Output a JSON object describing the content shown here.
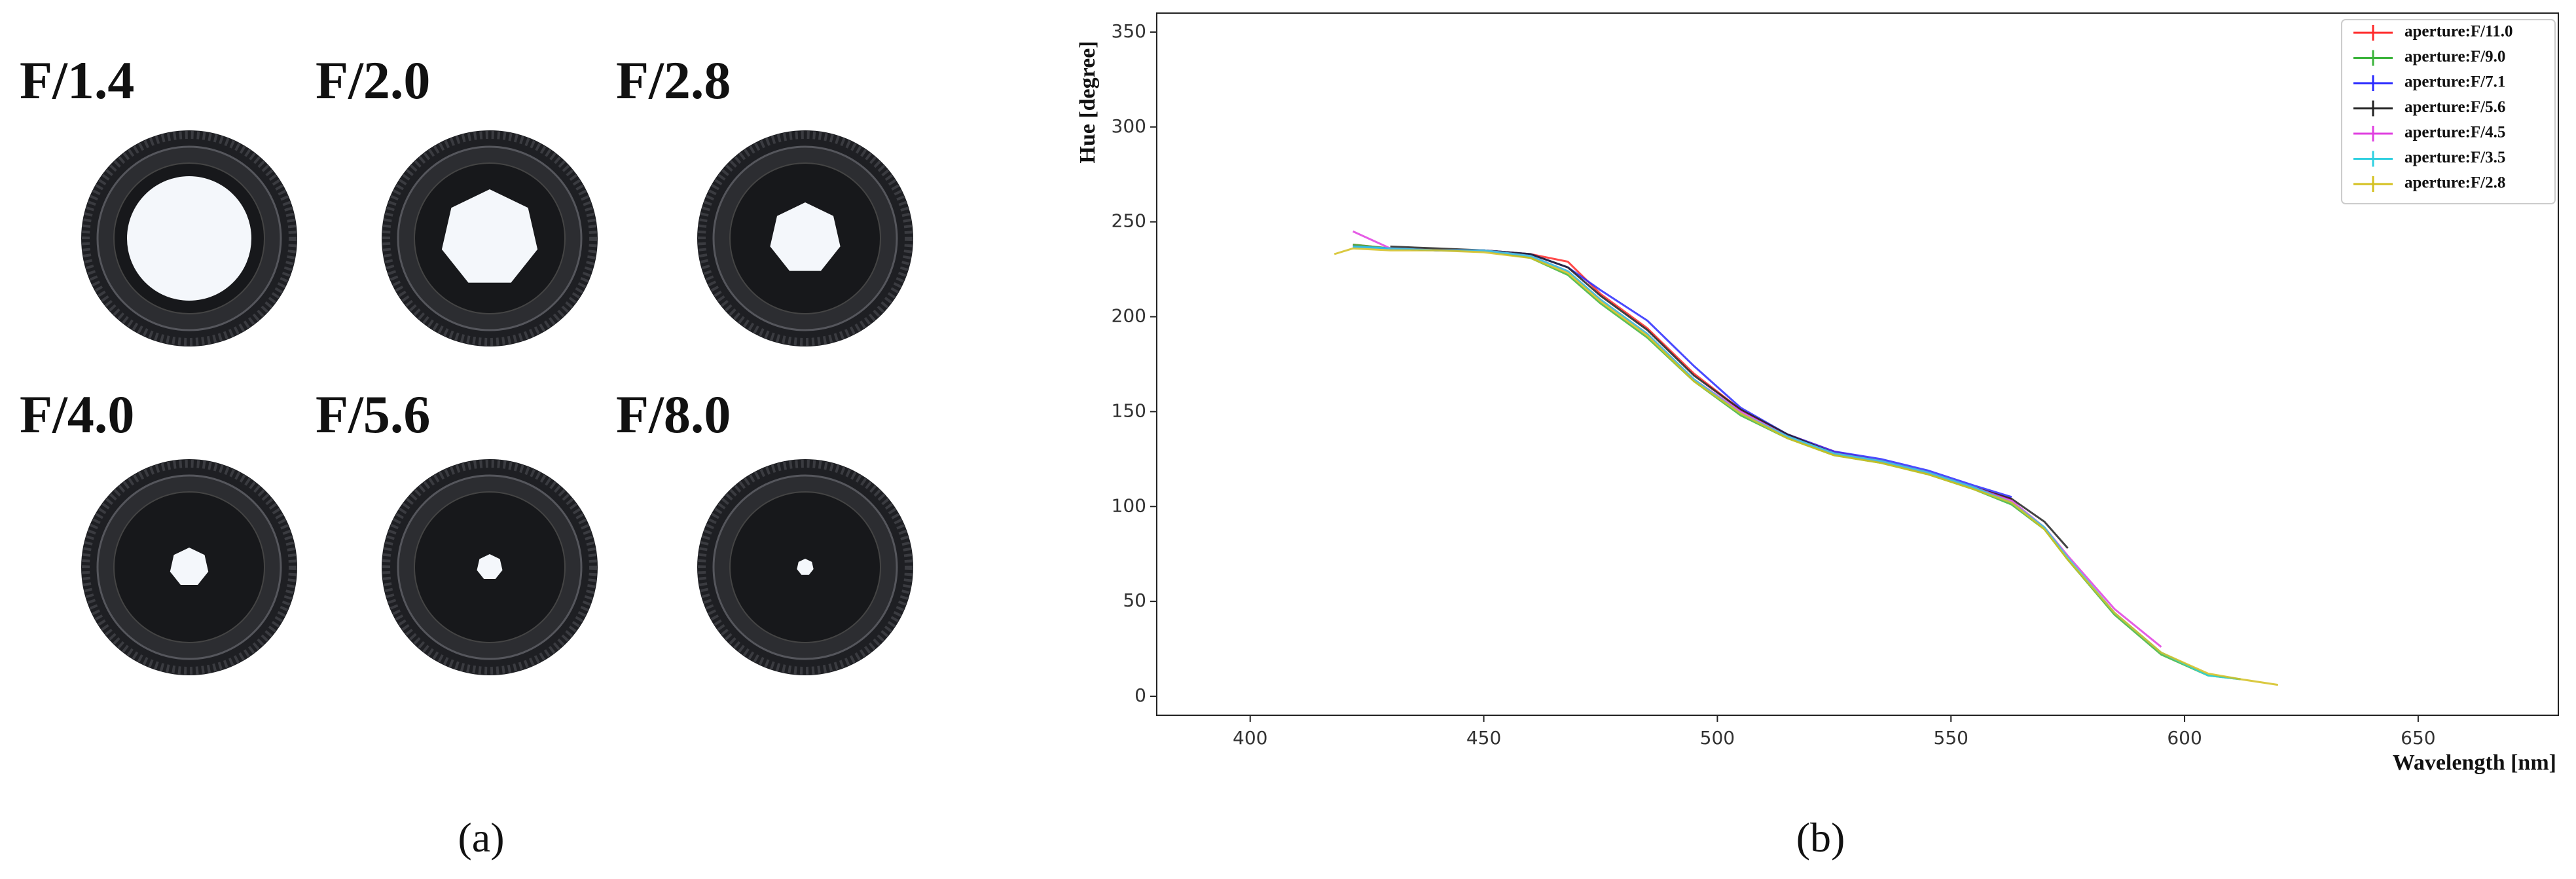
{
  "panel_a": {
    "apertures": [
      "F/1.4",
      "F/2.0",
      "F/2.8",
      "F/4.0",
      "F/5.6",
      "F/8.0"
    ],
    "caption": "(a)"
  },
  "panel_b": {
    "caption": "(b)"
  },
  "chart_data": {
    "type": "line",
    "x_label": "Wavelength [nm]",
    "y_label": "Hue [degree]",
    "x": [
      418,
      422,
      430,
      440,
      450,
      460,
      468,
      475,
      485,
      495,
      505,
      515,
      525,
      535,
      545,
      555,
      563,
      570,
      575,
      585,
      595,
      605,
      612,
      620
    ],
    "series": [
      {
        "name": "aperture:F/11.0",
        "color": "#ff2a2a",
        "values": [
          null,
          238,
          236,
          235,
          235,
          233,
          229,
          212,
          194,
          170,
          151,
          138,
          129,
          124,
          118,
          110,
          104,
          null,
          null,
          null,
          null,
          null,
          null,
          null
        ]
      },
      {
        "name": "aperture:F/9.0",
        "color": "#3cb43c",
        "values": [
          null,
          238,
          236,
          235,
          235,
          231,
          222,
          207,
          189,
          166,
          148,
          136,
          127,
          123,
          117,
          109,
          101,
          88,
          72,
          43,
          22,
          11,
          9,
          null
        ]
      },
      {
        "name": "aperture:F/7.1",
        "color": "#2a2aff",
        "values": [
          null,
          237,
          236,
          235,
          235,
          233,
          226,
          214,
          198,
          174,
          152,
          138,
          129,
          125,
          119,
          111,
          105,
          null,
          null,
          null,
          null,
          null,
          null,
          null
        ]
      },
      {
        "name": "aperture:F/5.6",
        "color": "#222222",
        "values": [
          null,
          null,
          237,
          236,
          235,
          233,
          226,
          211,
          193,
          169,
          151,
          138,
          128,
          124,
          118,
          110,
          104,
          92,
          78,
          null,
          null,
          null,
          null,
          null
        ]
      },
      {
        "name": "aperture:F/4.5",
        "color": "#e040e0",
        "values": [
          null,
          245,
          236,
          235,
          235,
          232,
          224,
          209,
          191,
          167,
          150,
          137,
          128,
          124,
          118,
          110,
          103,
          89,
          74,
          46,
          26,
          null,
          null,
          null
        ]
      },
      {
        "name": "aperture:F/3.5",
        "color": "#30d0e0",
        "values": [
          null,
          237,
          236,
          235,
          235,
          232,
          224,
          209,
          191,
          167,
          149,
          137,
          128,
          124,
          118,
          110,
          102,
          89,
          73,
          44,
          23,
          11,
          9,
          null
        ]
      },
      {
        "name": "aperture:F/2.8",
        "color": "#d4c020",
        "values": [
          233,
          236,
          235,
          235,
          234,
          231,
          223,
          208,
          190,
          166,
          149,
          136,
          127,
          123,
          117,
          109,
          102,
          88,
          72,
          44,
          23,
          12,
          9,
          6
        ]
      }
    ],
    "xlim": [
      380,
      680
    ],
    "xticks": [
      400,
      450,
      500,
      550,
      600,
      650
    ],
    "ylim": [
      -10,
      360
    ],
    "yticks": [
      0,
      50,
      100,
      150,
      200,
      250,
      300,
      350
    ],
    "legend": "upper right"
  }
}
